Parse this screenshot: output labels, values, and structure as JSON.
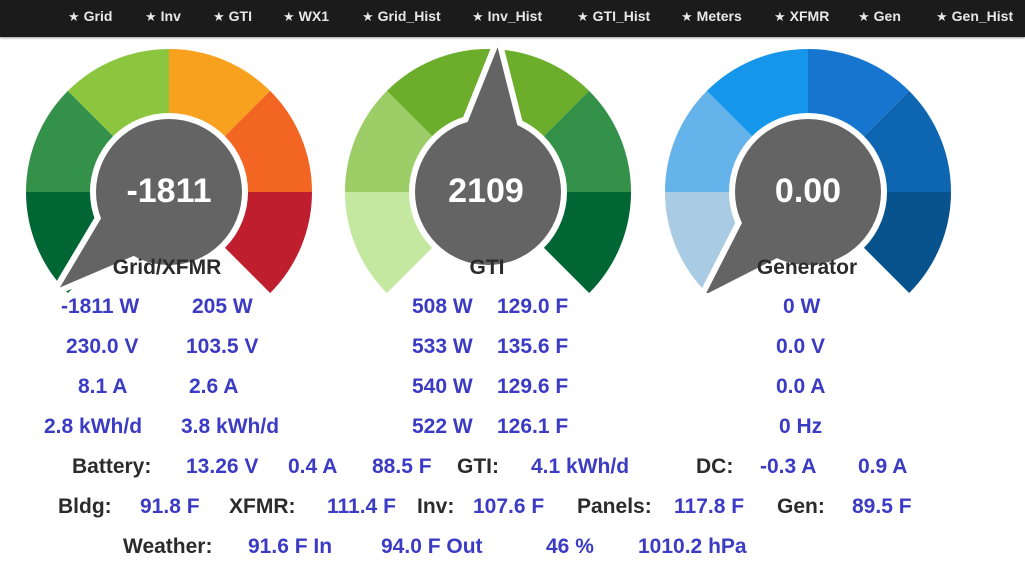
{
  "nav": [
    "Grid",
    "Inv",
    "GTI",
    "WX1",
    "Grid_Hist",
    "Inv_Hist",
    "GTI_Hist",
    "Meters",
    "XFMR",
    "Gen",
    "Gen_Hist"
  ],
  "nav_icon": "star-icon",
  "gauges": [
    {
      "title": "Grid/XFMR",
      "value": "-1811",
      "colors": [
        "#006633",
        "#33914a",
        "#8cc63f",
        "#f8a11e",
        "#f26522",
        "#be1e2d"
      ],
      "needle_level": 0.014
    },
    {
      "title": "GTI",
      "value": "2109",
      "colors": [
        "#c5e8a0",
        "#9ccd66",
        "#6cae2b",
        "#6cae2b",
        "#33914a",
        "#006633"
      ],
      "needle_level": 0.514
    },
    {
      "title": "Generator",
      "value": "0.00",
      "colors": [
        "#a9cbe4",
        "#64b3ea",
        "#1596ea",
        "#1676cf",
        "#0f66b0",
        "#08528e"
      ],
      "needle_level": 0.0
    }
  ],
  "grid_stats": {
    "col1": [
      "-1811 W",
      "230.0 V",
      "8.1 A",
      "2.8 kWh/d"
    ],
    "col2": [
      "205 W",
      "103.5 V",
      "2.6 A",
      "3.8 kWh/d"
    ]
  },
  "gti_stats": {
    "watts": [
      "508 W",
      "533 W",
      "540 W",
      "522 W"
    ],
    "temps": [
      "129.0 F",
      "135.6 F",
      "129.6 F",
      "126.1 F"
    ]
  },
  "gen_stats": [
    "0 W",
    "0.0 V",
    "0.0 A",
    "0 Hz"
  ],
  "battery": {
    "label": "Battery:",
    "voltage": "13.26 V",
    "current": "0.4 A",
    "temp": "88.5 F",
    "gti_label": "GTI:",
    "gti_energy": "4.1 kWh/d",
    "dc_label": "DC:",
    "dc1": "-0.3 A",
    "dc2": "0.9 A"
  },
  "temps": {
    "bldg_label": "Bldg:",
    "bldg": "91.8 F",
    "xfmr_label": "XFMR:",
    "xfmr": "111.4 F",
    "inv_label": "Inv:",
    "inv": "107.6 F",
    "panels_label": "Panels:",
    "panels": "117.8 F",
    "gen_label": "Gen:",
    "gen": "89.5 F"
  },
  "weather": {
    "label": "Weather:",
    "temp_in": "91.6 F In",
    "temp_out": "94.0 F Out",
    "humidity": "46 %",
    "pressure": "1010.2 hPa"
  }
}
